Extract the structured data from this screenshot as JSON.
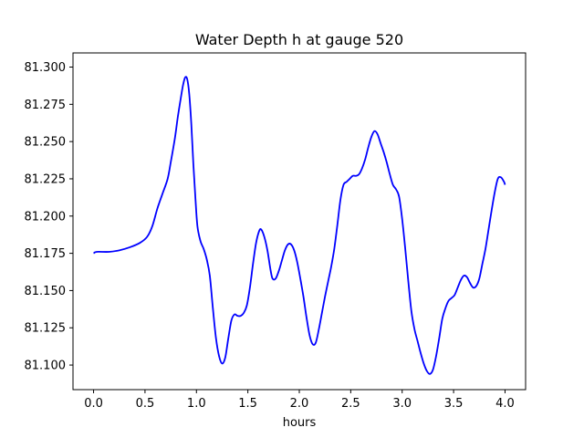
{
  "chart_data": {
    "type": "line",
    "title": "Water Depth h at gauge 520",
    "xlabel": "hours",
    "ylabel": "",
    "xlim": [
      -0.2,
      4.2
    ],
    "ylim": [
      81.0835,
      81.3095
    ],
    "xticks": [
      {
        "value": 0.0,
        "label": "0.0"
      },
      {
        "value": 0.5,
        "label": "0.5"
      },
      {
        "value": 1.0,
        "label": "1.0"
      },
      {
        "value": 1.5,
        "label": "1.5"
      },
      {
        "value": 2.0,
        "label": "2.0"
      },
      {
        "value": 2.5,
        "label": "2.5"
      },
      {
        "value": 3.0,
        "label": "3.0"
      },
      {
        "value": 3.5,
        "label": "3.5"
      },
      {
        "value": 4.0,
        "label": "4.0"
      }
    ],
    "yticks": [
      {
        "value": 81.1,
        "label": "81.100"
      },
      {
        "value": 81.125,
        "label": "81.125"
      },
      {
        "value": 81.15,
        "label": "81.150"
      },
      {
        "value": 81.175,
        "label": "81.175"
      },
      {
        "value": 81.2,
        "label": "81.200"
      },
      {
        "value": 81.225,
        "label": "81.225"
      },
      {
        "value": 81.25,
        "label": "81.250"
      },
      {
        "value": 81.275,
        "label": "81.275"
      },
      {
        "value": 81.3,
        "label": "81.300"
      }
    ],
    "grid": false,
    "line_color": "#0000ff",
    "series": [
      {
        "x": [
          0.0,
          0.03,
          0.15,
          0.25,
          0.35,
          0.45,
          0.52,
          0.57,
          0.62,
          0.67,
          0.72,
          0.75,
          0.79,
          0.82,
          0.85,
          0.87,
          0.89,
          0.91,
          0.93,
          0.95,
          0.97,
          0.99,
          1.01,
          1.04,
          1.07,
          1.1,
          1.13,
          1.16,
          1.19,
          1.22,
          1.25,
          1.28,
          1.31,
          1.34,
          1.37,
          1.4,
          1.43,
          1.46,
          1.49,
          1.52,
          1.55,
          1.58,
          1.61,
          1.63,
          1.66,
          1.69,
          1.72,
          1.74,
          1.77,
          1.8,
          1.83,
          1.86,
          1.89,
          1.92,
          1.95,
          1.98,
          2.01,
          2.04,
          2.07,
          2.1,
          2.13,
          2.16,
          2.19,
          2.22,
          2.25,
          2.28,
          2.31,
          2.34,
          2.37,
          2.4,
          2.43,
          2.46,
          2.49,
          2.52,
          2.55,
          2.58,
          2.61,
          2.64,
          2.67,
          2.7,
          2.73,
          2.76,
          2.79,
          2.82,
          2.85,
          2.88,
          2.91,
          2.94,
          2.97,
          3.0,
          3.03,
          3.06,
          3.09,
          3.12,
          3.15,
          3.18,
          3.21,
          3.24,
          3.27,
          3.3,
          3.33,
          3.36,
          3.39,
          3.42,
          3.45,
          3.48,
          3.51,
          3.54,
          3.57,
          3.6,
          3.63,
          3.66,
          3.69,
          3.72,
          3.75,
          3.78,
          3.81,
          3.84,
          3.87,
          3.9,
          3.93,
          3.96,
          3.99,
          4.0
        ],
        "y": [
          81.175,
          81.176,
          81.176,
          81.177,
          81.179,
          81.182,
          81.186,
          81.193,
          81.205,
          81.215,
          81.225,
          81.236,
          81.252,
          81.267,
          81.28,
          81.288,
          81.293,
          81.292,
          81.282,
          81.262,
          81.235,
          81.212,
          81.193,
          81.183,
          81.178,
          81.171,
          81.16,
          81.138,
          81.118,
          81.106,
          81.101,
          81.105,
          81.118,
          81.13,
          81.134,
          81.133,
          81.133,
          81.135,
          81.14,
          81.152,
          81.168,
          81.182,
          81.19,
          81.191,
          81.186,
          81.177,
          81.164,
          81.158,
          81.158,
          81.163,
          81.17,
          81.177,
          81.181,
          81.181,
          81.177,
          81.169,
          81.158,
          81.146,
          81.132,
          81.12,
          81.114,
          81.115,
          81.124,
          81.135,
          81.146,
          81.156,
          81.166,
          81.178,
          81.194,
          81.211,
          81.221,
          81.223,
          81.225,
          81.227,
          81.227,
          81.228,
          81.232,
          81.238,
          81.246,
          81.253,
          81.257,
          81.255,
          81.249,
          81.243,
          81.236,
          81.228,
          81.221,
          81.218,
          81.213,
          81.198,
          81.178,
          81.156,
          81.136,
          81.124,
          81.116,
          81.108,
          81.101,
          81.096,
          81.094,
          81.097,
          81.106,
          81.118,
          81.131,
          81.138,
          81.143,
          81.145,
          81.147,
          81.152,
          81.157,
          81.16,
          81.159,
          81.155,
          81.152,
          81.153,
          81.158,
          81.168,
          81.178,
          81.191,
          81.204,
          81.216,
          81.225,
          81.226,
          81.223,
          81.221
        ]
      }
    ]
  }
}
